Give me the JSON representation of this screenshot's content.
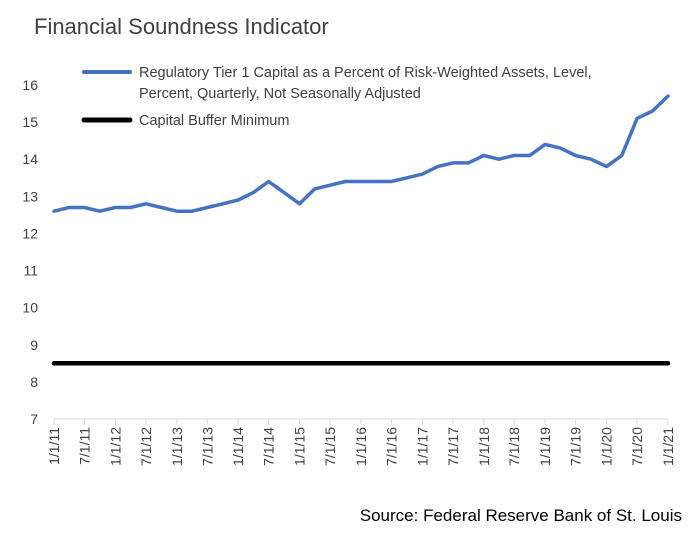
{
  "chart_data": {
    "type": "line",
    "title": "Financial Soundness Indicator",
    "source": "Source: Federal Reserve Bank of St. Louis",
    "xlabel": "",
    "ylabel": "",
    "ylim": [
      7,
      16
    ],
    "yticks": [
      7,
      8,
      9,
      10,
      11,
      12,
      13,
      14,
      15,
      16
    ],
    "x_tick_labels": [
      "1/1/11",
      "7/1/11",
      "1/1/12",
      "7/1/12",
      "1/1/13",
      "7/1/13",
      "1/1/14",
      "7/1/14",
      "1/1/15",
      "7/1/15",
      "1/1/16",
      "7/1/16",
      "1/1/17",
      "7/1/17",
      "1/1/18",
      "7/1/18",
      "1/1/19",
      "7/1/19",
      "1/1/20",
      "7/1/20",
      "1/1/21"
    ],
    "legend_placement": "top-left",
    "grid": false,
    "series": [
      {
        "name": "Regulatory Tier 1 Capital as a Percent of Risk-Weighted Assets, Level, Percent, Quarterly, Not Seasonally Adjusted",
        "legend_lines": [
          "Regulatory Tier 1 Capital as a Percent of Risk-Weighted Assets, Level,",
          "Percent, Quarterly, Not Seasonally Adjusted"
        ],
        "color": "#4472C4",
        "x": [
          "1/1/11",
          "4/1/11",
          "7/1/11",
          "10/1/11",
          "1/1/12",
          "4/1/12",
          "7/1/12",
          "10/1/12",
          "1/1/13",
          "4/1/13",
          "7/1/13",
          "10/1/13",
          "1/1/14",
          "4/1/14",
          "7/1/14",
          "10/1/14",
          "1/1/15",
          "4/1/15",
          "7/1/15",
          "10/1/15",
          "1/1/16",
          "4/1/16",
          "7/1/16",
          "10/1/16",
          "1/1/17",
          "4/1/17",
          "7/1/17",
          "10/1/17",
          "1/1/18",
          "4/1/18",
          "7/1/18",
          "10/1/18",
          "1/1/19",
          "4/1/19",
          "7/1/19",
          "10/1/19",
          "1/1/20",
          "4/1/20",
          "7/1/20",
          "10/1/20",
          "1/1/21"
        ],
        "values": [
          12.6,
          12.7,
          12.7,
          12.6,
          12.7,
          12.7,
          12.8,
          12.7,
          12.6,
          12.6,
          12.7,
          12.8,
          12.9,
          13.1,
          13.4,
          13.1,
          12.8,
          13.2,
          13.3,
          13.4,
          13.4,
          13.4,
          13.4,
          13.5,
          13.6,
          13.8,
          13.9,
          13.9,
          14.1,
          14.0,
          14.1,
          14.1,
          14.4,
          14.3,
          14.1,
          14.0,
          13.8,
          14.1,
          15.1,
          15.3,
          15.7
        ]
      },
      {
        "name": "Capital Buffer Minimum",
        "legend_lines": [
          "Capital Buffer Minimum"
        ],
        "color": "#000000",
        "x": [
          "1/1/11",
          "1/1/21"
        ],
        "values": [
          8.5,
          8.5
        ]
      }
    ]
  }
}
